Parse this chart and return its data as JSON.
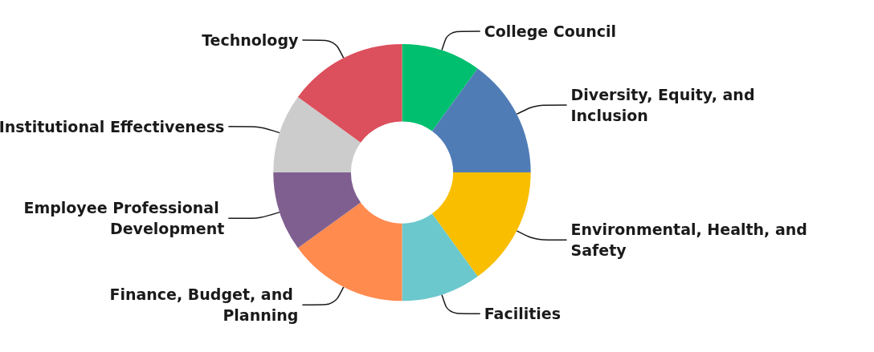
{
  "chart_data": {
    "type": "donut",
    "categories": [
      "College Council",
      "Diversity, Equity, and Inclusion",
      "Environmental, Health, and Safety",
      "Facilities",
      "Finance, Budget, and Planning",
      "Employee Professional Development",
      "Institutional Effectiveness",
      "Technology"
    ],
    "values": [
      10,
      15,
      15,
      10,
      15,
      10,
      10,
      15
    ],
    "colors": [
      "#00bf6f",
      "#507cb6",
      "#f9be00",
      "#6bc8cd",
      "#ff8b4f",
      "#7f5f90",
      "#cccccc",
      "#dc4f5c"
    ],
    "legend": false
  }
}
